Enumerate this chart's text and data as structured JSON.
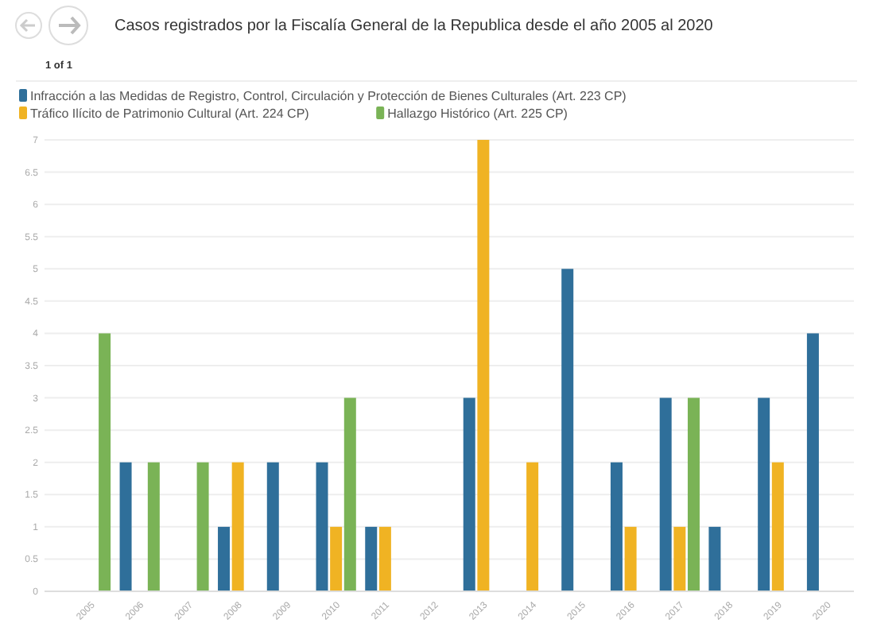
{
  "chart_data": {
    "type": "bar",
    "title": "Casos registrados por la Fiscalía General de la Republica desde el año 2005 al 2020",
    "annotations": [
      "1 of 1"
    ],
    "categories": [
      "2005",
      "2006",
      "2007",
      "2008",
      "2009",
      "2010",
      "2011",
      "2012",
      "2013",
      "2014",
      "2015",
      "2016",
      "2017",
      "2018",
      "2019",
      "2020"
    ],
    "series": [
      {
        "name": "Infracción a las Medidas de Registro, Control, Circulación y Protección de Bienes Culturales (Art. 223 CP)",
        "color": "#2f6f9a",
        "values": [
          null,
          2,
          null,
          1,
          2,
          2,
          1,
          null,
          3,
          null,
          5,
          2,
          3,
          1,
          3,
          4
        ]
      },
      {
        "name": "Tráfico Ilícito de Patrimonio Cultural (Art. 224 CP)",
        "color": "#f0b323",
        "values": [
          null,
          null,
          null,
          2,
          null,
          1,
          1,
          null,
          7,
          2,
          null,
          1,
          1,
          null,
          2,
          null
        ]
      },
      {
        "name": "Hallazgo Histórico (Art. 225 CP)",
        "color": "#7ab356",
        "values": [
          4,
          2,
          2,
          null,
          null,
          3,
          null,
          null,
          null,
          null,
          null,
          null,
          3,
          null,
          null,
          null
        ]
      }
    ],
    "ylim": [
      0,
      7
    ],
    "yticks": [
      0,
      0.5,
      1,
      1.5,
      2,
      2.5,
      3,
      3.5,
      4,
      4.5,
      5,
      5.5,
      6,
      6.5,
      7
    ],
    "grid": "y",
    "legend": "top left"
  }
}
